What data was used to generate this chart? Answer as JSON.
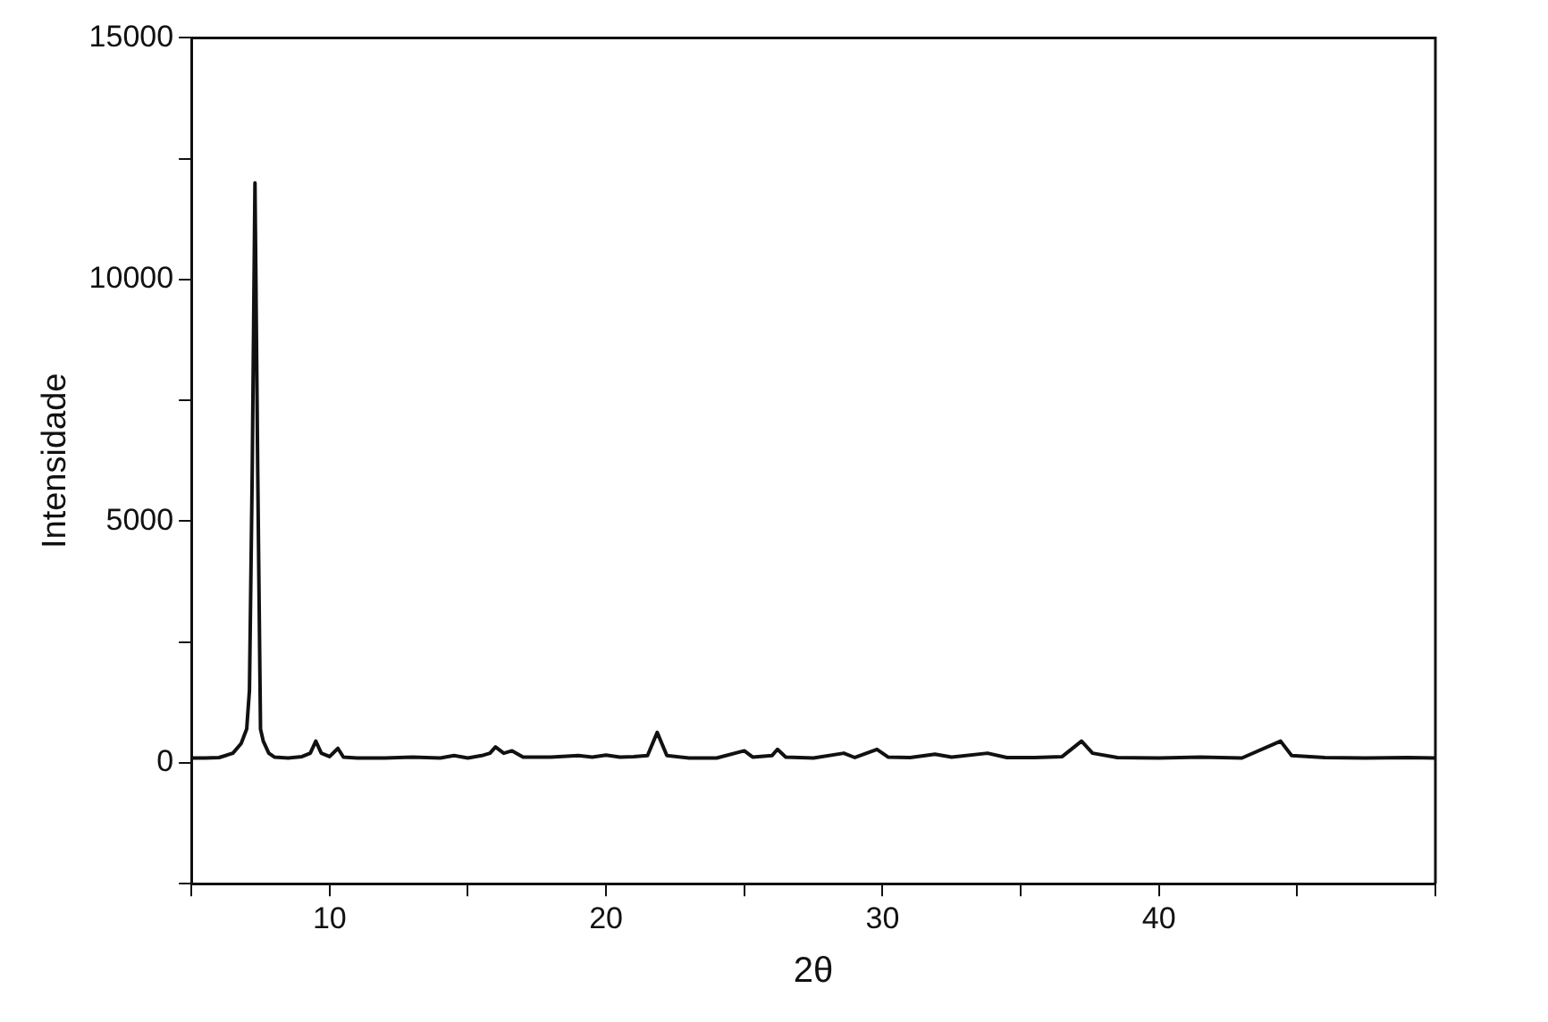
{
  "chart_data": {
    "type": "line",
    "xlabel": "2θ",
    "ylabel": "Intensidade",
    "x": [
      5.0,
      5.5,
      6.0,
      6.5,
      6.8,
      7.0,
      7.1,
      7.2,
      7.3,
      7.4,
      7.5,
      7.6,
      7.8,
      8.0,
      8.5,
      9.0,
      9.3,
      9.5,
      9.7,
      10.0,
      10.3,
      10.5,
      11.0,
      12.0,
      13.0,
      14.0,
      14.5,
      15.0,
      15.5,
      15.8,
      16.0,
      16.3,
      16.6,
      17.0,
      18.0,
      19.0,
      19.5,
      20.0,
      20.5,
      21.0,
      21.5,
      21.85,
      22.2,
      23.0,
      24.0,
      25.0,
      25.3,
      26.0,
      26.2,
      26.5,
      27.5,
      28.6,
      29.0,
      29.8,
      30.2,
      31.0,
      31.9,
      32.5,
      33.8,
      34.5,
      35.5,
      36.5,
      37.2,
      37.6,
      38.5,
      40.0,
      41.5,
      43.0,
      44.4,
      44.8,
      46.0,
      47.5,
      49.0,
      50.0
    ],
    "values": [
      100,
      100,
      110,
      200,
      400,
      700,
      1500,
      6000,
      12000,
      6000,
      700,
      450,
      200,
      120,
      100,
      130,
      200,
      450,
      200,
      130,
      300,
      120,
      100,
      100,
      120,
      100,
      150,
      100,
      150,
      200,
      330,
      200,
      250,
      120,
      120,
      150,
      120,
      160,
      120,
      130,
      150,
      630,
      150,
      100,
      100,
      250,
      120,
      150,
      280,
      120,
      100,
      200,
      110,
      280,
      120,
      110,
      180,
      120,
      200,
      110,
      110,
      130,
      450,
      200,
      110,
      100,
      120,
      100,
      450,
      150,
      110,
      100,
      110,
      100
    ],
    "color": "#111111",
    "marker": "none",
    "line_style": "solid",
    "xlim": [
      5,
      50
    ],
    "ylim": [
      -2500,
      15000
    ],
    "xticks": [
      {
        "value": 5,
        "label": null
      },
      10,
      {
        "value": 15,
        "label": null
      },
      20,
      {
        "value": 25,
        "label": null
      },
      30,
      {
        "value": 35,
        "label": null
      },
      40,
      {
        "value": 45,
        "label": null
      },
      {
        "value": 50,
        "label": null
      }
    ],
    "yticks": [
      {
        "value": -2500,
        "label": null
      },
      0,
      {
        "value": 2500,
        "label": null
      },
      5000,
      {
        "value": 7500,
        "label": null
      },
      10000,
      {
        "value": 12500,
        "label": null
      },
      15000
    ],
    "grid": false,
    "legend": false
  }
}
